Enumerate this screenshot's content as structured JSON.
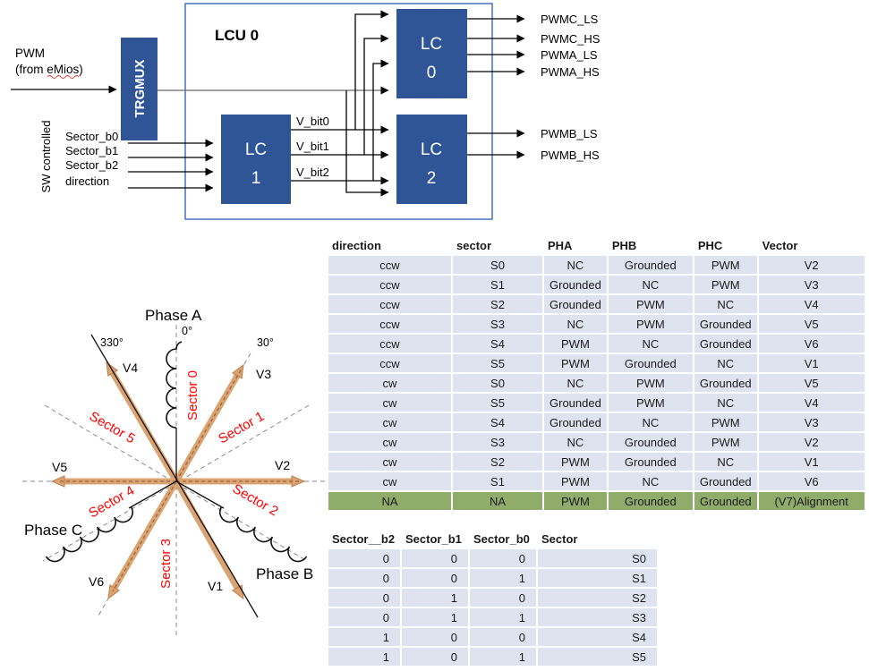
{
  "colors": {
    "block_blue": "#2F5597",
    "lcu_border_blue": "#4472C4",
    "table_row_bg": "#DFE3EF",
    "table_highlight_green": "#8FAC6B",
    "vector_arrow_tan": "#D9A471",
    "vector_arrow_edge": "#BE7E50",
    "vector_arrow_dash_brown": "#9A6038",
    "sector_label_red": "#FF0000",
    "spellcheck_underline_red": "#E03030"
  },
  "block_diagram": {
    "pwm_label_line1": "PWM",
    "pwm_label_line2": "(from eMios)",
    "trgmux": "TRGMUX",
    "lcu_title": "LCU 0",
    "sw_controlled": "SW controlled",
    "inputs": [
      "Sector_b0",
      "Sector_b1",
      "Sector_b2",
      "direction"
    ],
    "lc_blocks": {
      "lc0_line1": "LC",
      "lc0_line2": "0",
      "lc1_line1": "LC",
      "lc1_line2": "1",
      "lc2_line1": "LC",
      "lc2_line2": "2"
    },
    "vbit_labels": [
      "V_bit0",
      "V_bit1",
      "V_bit2"
    ],
    "outputs_lc0": [
      "PWMC_LS",
      "PWMC_HS",
      "PWMA_LS",
      "PWMA_HS"
    ],
    "outputs_lc2": [
      "PWMB_LS",
      "PWMB_HS"
    ]
  },
  "vector_diagram": {
    "phase_a": "Phase A",
    "phase_b": "Phase B",
    "phase_c": "Phase C",
    "angle_0": "0°",
    "angle_330": "330°",
    "angle_30": "30°",
    "v1": "V1",
    "v2": "V2",
    "v3": "V3",
    "v4": "V4",
    "v5": "V5",
    "v6": "V6",
    "sector_0": "Sector 0",
    "sector_1": "Sector 1",
    "sector_2": "Sector 2",
    "sector_3": "Sector 3",
    "sector_4": "Sector 4",
    "sector_5": "Sector 5"
  },
  "tables": {
    "vector_table": {
      "headers": [
        "direction",
        "sector",
        "PHA",
        "PHB",
        "PHC",
        "Vector"
      ],
      "rows": [
        [
          "ccw",
          "S0",
          "NC",
          "Grounded",
          "PWM",
          "V2"
        ],
        [
          "ccw",
          "S1",
          "Grounded",
          "NC",
          "PWM",
          "V3"
        ],
        [
          "ccw",
          "S2",
          "Grounded",
          "PWM",
          "NC",
          "V4"
        ],
        [
          "ccw",
          "S3",
          "NC",
          "PWM",
          "Grounded",
          "V5"
        ],
        [
          "ccw",
          "S4",
          "PWM",
          "NC",
          "Grounded",
          "V6"
        ],
        [
          "ccw",
          "S5",
          "PWM",
          "Grounded",
          "NC",
          "V1"
        ],
        [
          "cw",
          "S0",
          "NC",
          "PWM",
          "Grounded",
          "V5"
        ],
        [
          "cw",
          "S5",
          "Grounded",
          "PWM",
          "NC",
          "V4"
        ],
        [
          "cw",
          "S4",
          "Grounded",
          "NC",
          "PWM",
          "V3"
        ],
        [
          "cw",
          "S3",
          "NC",
          "Grounded",
          "PWM",
          "V2"
        ],
        [
          "cw",
          "S2",
          "PWM",
          "Grounded",
          "NC",
          "V1"
        ],
        [
          "cw",
          "S1",
          "PWM",
          "NC",
          "Grounded",
          "V6"
        ],
        [
          "NA",
          "NA",
          "PWM",
          "Grounded",
          "Grounded",
          "(V7)Alignment"
        ]
      ],
      "highlight_row": 12,
      "cell_align": "center"
    },
    "sector_table": {
      "headers": [
        "Sector__b2",
        "Sector_b1",
        "Sector_b0",
        "Sector"
      ],
      "rows": [
        [
          "0",
          "0",
          "0",
          "S0"
        ],
        [
          "0",
          "0",
          "1",
          "S1"
        ],
        [
          "0",
          "1",
          "0",
          "S2"
        ],
        [
          "0",
          "1",
          "1",
          "S3"
        ],
        [
          "1",
          "0",
          "0",
          "S4"
        ],
        [
          "1",
          "0",
          "1",
          "S5"
        ]
      ],
      "cell_align": "right"
    }
  }
}
